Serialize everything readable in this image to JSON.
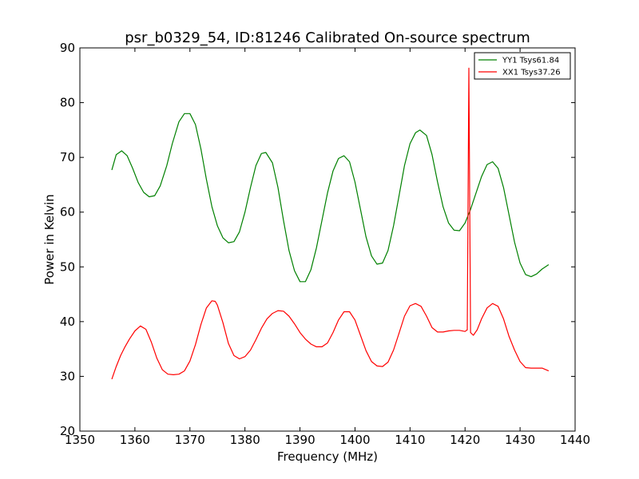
{
  "chart_data": {
    "type": "line",
    "title": "psr_b0329_54, ID:81246 Calibrated On-source spectrum",
    "xlabel": "Frequency (MHz)",
    "ylabel": "Power in Kelvin",
    "xlim": [
      1350,
      1440
    ],
    "ylim": [
      20,
      90
    ],
    "xticks": [
      "1350",
      "1360",
      "1370",
      "1380",
      "1390",
      "1400",
      "1410",
      "1420",
      "1430",
      "1440"
    ],
    "yticks": [
      "20",
      "30",
      "40",
      "50",
      "60",
      "70",
      "80",
      "90"
    ],
    "grid": false,
    "legend_position": "top-right",
    "series": [
      {
        "name": "YY1 Tsys61.84",
        "color": "#008000",
        "points": [
          [
            1355.8,
            67.7
          ],
          [
            1356.6,
            70.5
          ],
          [
            1357.6,
            71.2
          ],
          [
            1358.6,
            70.3
          ],
          [
            1359.6,
            68.0
          ],
          [
            1360.6,
            65.4
          ],
          [
            1361.6,
            63.6
          ],
          [
            1362.6,
            62.8
          ],
          [
            1363.6,
            63.0
          ],
          [
            1364.6,
            64.8
          ],
          [
            1365.8,
            68.5
          ],
          [
            1366.8,
            72.5
          ],
          [
            1368.0,
            76.5
          ],
          [
            1369.0,
            78.0
          ],
          [
            1370.0,
            78.0
          ],
          [
            1371.0,
            76.0
          ],
          [
            1372.0,
            71.5
          ],
          [
            1373.0,
            66.0
          ],
          [
            1374.0,
            61.0
          ],
          [
            1375.0,
            57.5
          ],
          [
            1376.0,
            55.3
          ],
          [
            1377.0,
            54.4
          ],
          [
            1378.0,
            54.6
          ],
          [
            1379.0,
            56.4
          ],
          [
            1380.0,
            60.0
          ],
          [
            1381.0,
            64.5
          ],
          [
            1382.0,
            68.5
          ],
          [
            1383.0,
            70.7
          ],
          [
            1383.8,
            70.9
          ],
          [
            1385.0,
            69.0
          ],
          [
            1386.0,
            64.5
          ],
          [
            1387.0,
            58.5
          ],
          [
            1388.0,
            53.0
          ],
          [
            1389.0,
            49.3
          ],
          [
            1390.0,
            47.3
          ],
          [
            1391.0,
            47.3
          ],
          [
            1392.0,
            49.5
          ],
          [
            1393.0,
            53.5
          ],
          [
            1394.0,
            58.5
          ],
          [
            1395.0,
            63.5
          ],
          [
            1396.0,
            67.5
          ],
          [
            1397.0,
            69.8
          ],
          [
            1398.0,
            70.3
          ],
          [
            1399.0,
            69.2
          ],
          [
            1400.0,
            65.5
          ],
          [
            1401.0,
            60.5
          ],
          [
            1402.0,
            55.5
          ],
          [
            1403.0,
            52.0
          ],
          [
            1404.0,
            50.5
          ],
          [
            1405.0,
            50.7
          ],
          [
            1406.0,
            53.0
          ],
          [
            1407.0,
            57.5
          ],
          [
            1408.0,
            63.0
          ],
          [
            1409.0,
            68.5
          ],
          [
            1410.0,
            72.5
          ],
          [
            1411.0,
            74.5
          ],
          [
            1411.8,
            75.0
          ],
          [
            1413.0,
            74.0
          ],
          [
            1414.0,
            70.5
          ],
          [
            1415.0,
            65.5
          ],
          [
            1416.0,
            61.0
          ],
          [
            1417.0,
            58.0
          ],
          [
            1418.0,
            56.7
          ],
          [
            1419.0,
            56.6
          ],
          [
            1420.0,
            58.0
          ],
          [
            1421.0,
            60.5
          ],
          [
            1422.0,
            63.5
          ],
          [
            1423.0,
            66.5
          ],
          [
            1424.0,
            68.7
          ],
          [
            1425.0,
            69.2
          ],
          [
            1426.0,
            68.0
          ],
          [
            1427.0,
            64.5
          ],
          [
            1428.0,
            59.5
          ],
          [
            1429.0,
            54.5
          ],
          [
            1430.0,
            50.7
          ],
          [
            1431.0,
            48.6
          ],
          [
            1432.0,
            48.2
          ],
          [
            1433.0,
            48.7
          ],
          [
            1434.0,
            49.6
          ],
          [
            1435.2,
            50.4
          ]
        ]
      },
      {
        "name": "XX1 Tsys37.26",
        "color": "#ff0000",
        "points": [
          [
            1355.8,
            29.5
          ],
          [
            1356.6,
            31.8
          ],
          [
            1357.4,
            33.8
          ],
          [
            1358.2,
            35.4
          ],
          [
            1359.0,
            36.8
          ],
          [
            1360.0,
            38.3
          ],
          [
            1361.0,
            39.2
          ],
          [
            1362.0,
            38.6
          ],
          [
            1363.0,
            36.2
          ],
          [
            1364.0,
            33.3
          ],
          [
            1365.0,
            31.2
          ],
          [
            1366.0,
            30.4
          ],
          [
            1367.0,
            30.3
          ],
          [
            1368.0,
            30.4
          ],
          [
            1369.0,
            31.0
          ],
          [
            1370.0,
            32.8
          ],
          [
            1371.0,
            35.8
          ],
          [
            1372.0,
            39.5
          ],
          [
            1373.0,
            42.5
          ],
          [
            1374.0,
            43.8
          ],
          [
            1374.6,
            43.7
          ],
          [
            1375.0,
            43.0
          ],
          [
            1376.0,
            39.8
          ],
          [
            1377.0,
            36.0
          ],
          [
            1378.0,
            33.8
          ],
          [
            1379.0,
            33.2
          ],
          [
            1380.0,
            33.6
          ],
          [
            1381.0,
            34.8
          ],
          [
            1382.0,
            36.7
          ],
          [
            1383.0,
            38.8
          ],
          [
            1384.0,
            40.5
          ],
          [
            1385.0,
            41.5
          ],
          [
            1386.0,
            42.0
          ],
          [
            1387.0,
            41.9
          ],
          [
            1388.0,
            41.0
          ],
          [
            1389.0,
            39.6
          ],
          [
            1390.0,
            38.0
          ],
          [
            1391.0,
            36.8
          ],
          [
            1392.0,
            35.9
          ],
          [
            1393.0,
            35.4
          ],
          [
            1394.0,
            35.4
          ],
          [
            1395.0,
            36.1
          ],
          [
            1396.0,
            38.0
          ],
          [
            1397.0,
            40.3
          ],
          [
            1398.0,
            41.8
          ],
          [
            1399.0,
            41.8
          ],
          [
            1400.0,
            40.3
          ],
          [
            1401.0,
            37.5
          ],
          [
            1402.0,
            34.7
          ],
          [
            1403.0,
            32.7
          ],
          [
            1404.0,
            31.9
          ],
          [
            1405.0,
            31.8
          ],
          [
            1406.0,
            32.6
          ],
          [
            1407.0,
            34.8
          ],
          [
            1408.0,
            37.9
          ],
          [
            1409.0,
            41.0
          ],
          [
            1410.0,
            42.9
          ],
          [
            1411.0,
            43.3
          ],
          [
            1412.0,
            42.8
          ],
          [
            1413.0,
            41.0
          ],
          [
            1414.0,
            38.9
          ],
          [
            1415.0,
            38.1
          ],
          [
            1416.0,
            38.1
          ],
          [
            1417.0,
            38.3
          ],
          [
            1418.0,
            38.4
          ],
          [
            1419.0,
            38.4
          ],
          [
            1420.0,
            38.2
          ],
          [
            1420.4,
            38.5
          ],
          [
            1420.7,
            86.3
          ],
          [
            1421.0,
            38.0
          ],
          [
            1421.5,
            37.5
          ],
          [
            1422.2,
            38.5
          ],
          [
            1423.0,
            40.5
          ],
          [
            1424.0,
            42.5
          ],
          [
            1425.0,
            43.3
          ],
          [
            1426.0,
            42.8
          ],
          [
            1427.0,
            40.5
          ],
          [
            1428.0,
            37.3
          ],
          [
            1429.0,
            34.8
          ],
          [
            1430.0,
            32.7
          ],
          [
            1431.0,
            31.6
          ],
          [
            1432.0,
            31.5
          ],
          [
            1433.0,
            31.5
          ],
          [
            1434.0,
            31.5
          ],
          [
            1435.2,
            31.0
          ]
        ]
      }
    ]
  }
}
